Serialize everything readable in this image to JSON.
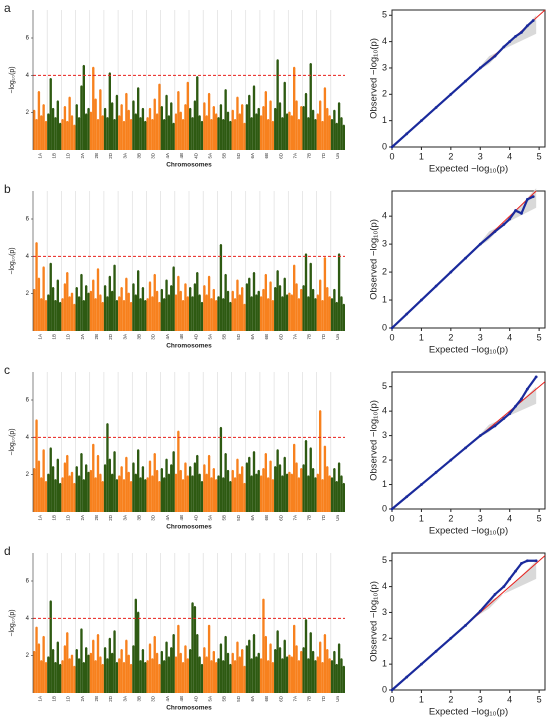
{
  "chart_data": [
    {
      "type": "manhattan",
      "panel": "a",
      "ylabel": "−log₁₀(p)",
      "xlabel": "Chromosomes",
      "categories": [
        "1A",
        "1B",
        "1D",
        "2A",
        "2B",
        "2D",
        "3A",
        "3B",
        "3D",
        "4A",
        "4B",
        "4D",
        "5A",
        "5B",
        "5D",
        "6A",
        "6B",
        "6D",
        "7A",
        "7B",
        "7D",
        "Un"
      ],
      "colors": [
        "#f7811e",
        "#2e5a12"
      ],
      "threshold": 4,
      "threshold_color": "#e8211d",
      "ylim": [
        0,
        7.5
      ],
      "yticks": [
        2,
        4,
        6
      ],
      "values": [
        [
          2.1,
          1.6,
          3.1,
          1.8,
          2.4,
          1.5
        ],
        [
          1.9,
          3.8,
          2.2,
          1.7,
          2.6,
          1.4
        ],
        [
          1.6,
          2.3,
          1.5,
          2.8,
          1.8,
          1.3
        ],
        [
          2.4,
          1.7,
          3.4,
          4.5,
          1.9,
          2.2
        ],
        [
          2.0,
          4.4,
          2.7,
          1.6,
          3.2,
          1.8
        ],
        [
          2.2,
          1.7,
          4.1,
          2.5,
          1.6,
          2.9
        ],
        [
          1.8,
          2.4,
          1.5,
          3.0,
          2.1,
          1.6
        ],
        [
          2.6,
          1.9,
          3.3,
          1.7,
          2.2,
          1.5
        ],
        [
          1.7,
          2.2,
          1.6,
          2.7,
          1.9,
          3.5
        ],
        [
          2.3,
          1.6,
          2.9,
          1.8,
          2.5,
          1.4
        ],
        [
          1.9,
          3.1,
          2.0,
          1.6,
          2.4,
          3.6
        ],
        [
          2.2,
          1.7,
          2.6,
          3.9,
          1.8,
          1.5
        ],
        [
          2.5,
          1.8,
          3.0,
          1.6,
          2.3,
          1.9
        ],
        [
          1.7,
          2.4,
          1.6,
          3.2,
          2.0,
          1.5
        ],
        [
          2.1,
          1.6,
          2.8,
          1.9,
          2.4,
          1.4
        ],
        [
          2.4,
          2.9,
          1.7,
          3.4,
          1.9,
          2.2
        ],
        [
          1.8,
          2.3,
          3.1,
          1.6,
          2.6,
          1.5
        ],
        [
          2.2,
          4.8,
          2.5,
          1.7,
          3.6,
          1.9
        ],
        [
          2.0,
          1.8,
          4.4,
          2.6,
          1.6,
          2.3
        ],
        [
          2.3,
          3.0,
          1.7,
          4.6,
          2.1,
          1.6
        ],
        [
          1.9,
          2.6,
          1.5,
          3.3,
          2.2,
          1.8
        ],
        [
          1.6,
          2.1,
          1.4,
          2.5,
          1.7,
          1.3
        ]
      ]
    },
    {
      "type": "qq",
      "xlabel": "Expected −log₁₀(p)",
      "ylabel": "Observed −log₁₀(p)",
      "x": [
        0,
        0.5,
        1,
        1.5,
        2,
        2.5,
        3,
        3.5,
        3.8,
        4,
        4.2,
        4.4,
        4.6,
        4.8
      ],
      "y": [
        0,
        0.5,
        1,
        1.5,
        2,
        2.5,
        3,
        3.45,
        3.8,
        4.0,
        4.2,
        4.35,
        4.6,
        4.8
      ],
      "point_color": "#1a2a9c",
      "line_color": "#e8211d",
      "xlim": [
        0,
        5.2
      ],
      "xticks": [
        0,
        1,
        2,
        3,
        4,
        5
      ],
      "ylim": [
        0,
        5.2
      ],
      "yticks": [
        0,
        1,
        2,
        3,
        4,
        5
      ]
    },
    {
      "type": "manhattan",
      "panel": "b",
      "ylabel": "−log₁₀(p)",
      "xlabel": "Chromosomes",
      "categories": [
        "1A",
        "1B",
        "1D",
        "2A",
        "2B",
        "2D",
        "3A",
        "3B",
        "3D",
        "4A",
        "4B",
        "4D",
        "5A",
        "5B",
        "5D",
        "6A",
        "6B",
        "6D",
        "7A",
        "7B",
        "7D",
        "Un"
      ],
      "colors": [
        "#f7811e",
        "#2e5a12"
      ],
      "threshold": 4,
      "threshold_color": "#e8211d",
      "ylim": [
        0,
        7.5
      ],
      "yticks": [
        2,
        4,
        6
      ],
      "values": [
        [
          2.2,
          4.7,
          2.8,
          1.7,
          3.4,
          1.6
        ],
        [
          1.9,
          3.6,
          2.3,
          1.6,
          2.7,
          1.5
        ],
        [
          1.7,
          2.5,
          3.1,
          1.8,
          2.0,
          1.4
        ],
        [
          2.3,
          1.8,
          3.0,
          1.6,
          2.4,
          2.0
        ],
        [
          2.1,
          2.7,
          1.7,
          3.3,
          1.9,
          1.5
        ],
        [
          2.4,
          1.8,
          2.9,
          2.1,
          3.5,
          1.6
        ],
        [
          1.8,
          2.3,
          1.6,
          2.8,
          2.0,
          1.5
        ],
        [
          2.5,
          1.9,
          3.2,
          1.7,
          2.3,
          1.6
        ],
        [
          1.7,
          2.6,
          1.8,
          3.0,
          2.1,
          1.5
        ],
        [
          2.2,
          1.7,
          2.7,
          1.9,
          2.4,
          3.4
        ],
        [
          1.9,
          2.9,
          2.1,
          1.6,
          2.5,
          1.8
        ],
        [
          2.3,
          1.8,
          2.5,
          3.1,
          1.9,
          1.5
        ],
        [
          2.4,
          1.9,
          2.9,
          1.7,
          2.2,
          1.6
        ],
        [
          1.8,
          4.6,
          1.7,
          3.0,
          2.1,
          1.5
        ],
        [
          2.1,
          1.7,
          2.7,
          1.9,
          2.3,
          1.4
        ],
        [
          2.5,
          2.8,
          1.8,
          3.1,
          1.9,
          2.1
        ],
        [
          1.8,
          2.2,
          3.0,
          1.7,
          2.6,
          1.6
        ],
        [
          2.3,
          3.2,
          2.4,
          1.8,
          2.8,
          1.9
        ],
        [
          2.0,
          1.9,
          3.5,
          2.5,
          1.7,
          2.2
        ],
        [
          2.4,
          4.1,
          1.8,
          3.6,
          2.2,
          1.7
        ],
        [
          1.9,
          2.7,
          1.6,
          3.9,
          2.3,
          1.8
        ],
        [
          1.7,
          2.2,
          1.5,
          4.1,
          1.8,
          1.4
        ]
      ]
    },
    {
      "type": "qq",
      "xlabel": "Expected −log₁₀(p)",
      "ylabel": "Observed −log₁₀(p)",
      "x": [
        0,
        0.5,
        1,
        1.5,
        2,
        2.5,
        3,
        3.5,
        3.8,
        4,
        4.2,
        4.4,
        4.6,
        4.8
      ],
      "y": [
        0,
        0.5,
        1,
        1.5,
        2,
        2.5,
        3,
        3.45,
        3.7,
        3.9,
        4.2,
        4.1,
        4.6,
        4.7
      ],
      "point_color": "#1a2a9c",
      "line_color": "#e8211d",
      "xlim": [
        0,
        5.2
      ],
      "xticks": [
        0,
        1,
        2,
        3,
        4,
        5
      ],
      "ylim": [
        0,
        4.9
      ],
      "yticks": [
        0,
        1,
        2,
        3,
        4
      ]
    },
    {
      "type": "manhattan",
      "panel": "c",
      "ylabel": "−log₁₀(p)",
      "xlabel": "Chromosomes",
      "categories": [
        "1A",
        "1B",
        "1D",
        "2A",
        "2B",
        "2D",
        "3A",
        "3B",
        "3D",
        "4A",
        "4B",
        "4D",
        "5A",
        "5B",
        "5D",
        "6A",
        "6B",
        "6D",
        "7A",
        "7B",
        "7D",
        "Un"
      ],
      "colors": [
        "#f7811e",
        "#2e5a12"
      ],
      "threshold": 4,
      "threshold_color": "#e8211d",
      "ylim": [
        0,
        7.5
      ],
      "yticks": [
        2,
        4,
        6
      ],
      "values": [
        [
          2.3,
          4.9,
          2.7,
          1.8,
          3.3,
          1.6
        ],
        [
          2.0,
          3.4,
          2.4,
          1.7,
          2.8,
          1.5
        ],
        [
          1.8,
          2.6,
          3.0,
          1.9,
          2.1,
          1.5
        ],
        [
          2.4,
          1.9,
          3.1,
          1.7,
          2.5,
          2.1
        ],
        [
          2.2,
          3.6,
          1.8,
          3.0,
          2.0,
          1.6
        ],
        [
          2.5,
          4.7,
          2.8,
          2.0,
          3.2,
          1.7
        ],
        [
          1.9,
          2.4,
          1.7,
          2.9,
          2.1,
          1.6
        ],
        [
          2.6,
          2.0,
          3.3,
          1.8,
          2.4,
          1.7
        ],
        [
          1.8,
          2.7,
          1.9,
          3.1,
          2.2,
          1.6
        ],
        [
          2.3,
          1.8,
          2.8,
          2.0,
          2.5,
          3.2
        ],
        [
          2.0,
          4.3,
          2.2,
          1.7,
          2.6,
          1.9
        ],
        [
          2.4,
          1.9,
          2.6,
          3.0,
          2.0,
          1.6
        ],
        [
          2.5,
          2.0,
          3.0,
          1.8,
          2.3,
          1.7
        ],
        [
          1.9,
          4.5,
          1.8,
          3.1,
          2.2,
          1.6
        ],
        [
          2.2,
          1.8,
          2.8,
          2.0,
          2.4,
          1.5
        ],
        [
          2.6,
          2.9,
          1.9,
          3.2,
          2.0,
          2.2
        ],
        [
          1.9,
          2.3,
          3.1,
          1.8,
          2.7,
          1.7
        ],
        [
          2.4,
          3.3,
          2.5,
          1.9,
          2.9,
          2.0
        ],
        [
          2.1,
          2.0,
          3.6,
          2.6,
          1.8,
          2.3
        ],
        [
          2.5,
          3.8,
          1.9,
          3.4,
          2.3,
          1.8
        ],
        [
          2.0,
          5.4,
          1.7,
          3.5,
          2.4,
          1.9
        ],
        [
          1.8,
          2.3,
          1.6,
          2.6,
          1.9,
          1.5
        ]
      ]
    },
    {
      "type": "qq",
      "xlabel": "Expected −log₁₀(p)",
      "ylabel": "Observed −log₁₀(p)",
      "x": [
        0,
        0.5,
        1,
        1.5,
        2,
        2.5,
        3,
        3.5,
        3.8,
        4,
        4.2,
        4.4,
        4.6,
        4.9
      ],
      "y": [
        0,
        0.5,
        1,
        1.5,
        2,
        2.5,
        3,
        3.4,
        3.7,
        3.9,
        4.2,
        4.5,
        4.9,
        5.4
      ],
      "point_color": "#1a2a9c",
      "line_color": "#e8211d",
      "xlim": [
        0,
        5.2
      ],
      "xticks": [
        0,
        1,
        2,
        3,
        4,
        5
      ],
      "ylim": [
        0,
        5.6
      ],
      "yticks": [
        0,
        1,
        2,
        3,
        4,
        5
      ]
    },
    {
      "type": "manhattan",
      "panel": "d",
      "ylabel": "−log₁₀(p)",
      "xlabel": "Chromosomes",
      "categories": [
        "1A",
        "1B",
        "1D",
        "2A",
        "2B",
        "2D",
        "3A",
        "3B",
        "3D",
        "4A",
        "4B",
        "4D",
        "5A",
        "5B",
        "5D",
        "6A",
        "6B",
        "6D",
        "7A",
        "7B",
        "7D",
        "Un"
      ],
      "colors": [
        "#f7811e",
        "#2e5a12"
      ],
      "threshold": 4,
      "threshold_color": "#e8211d",
      "ylim": [
        0,
        7.5
      ],
      "yticks": [
        2,
        4,
        6
      ],
      "values": [
        [
          2.2,
          3.5,
          2.6,
          1.7,
          3.0,
          1.6
        ],
        [
          1.9,
          4.9,
          2.3,
          1.6,
          2.7,
          1.5
        ],
        [
          1.7,
          2.5,
          3.2,
          1.8,
          2.0,
          1.4
        ],
        [
          2.3,
          1.8,
          3.4,
          1.6,
          2.4,
          2.0
        ],
        [
          2.1,
          2.8,
          1.7,
          3.1,
          1.9,
          1.5
        ],
        [
          2.4,
          1.8,
          2.9,
          2.1,
          3.3,
          1.6
        ],
        [
          1.8,
          2.3,
          1.6,
          2.8,
          2.0,
          1.5
        ],
        [
          2.5,
          5.0,
          4.3,
          1.7,
          2.3,
          1.6
        ],
        [
          1.7,
          2.6,
          1.8,
          3.0,
          2.1,
          1.5
        ],
        [
          2.2,
          1.7,
          2.7,
          1.9,
          2.4,
          3.1
        ],
        [
          1.9,
          3.6,
          2.1,
          1.6,
          2.5,
          1.8
        ],
        [
          2.3,
          4.8,
          4.6,
          3.1,
          1.9,
          1.5
        ],
        [
          2.4,
          1.9,
          3.6,
          1.7,
          2.2,
          1.6
        ],
        [
          1.8,
          2.6,
          1.7,
          3.0,
          2.1,
          1.5
        ],
        [
          2.1,
          1.7,
          2.7,
          1.9,
          2.3,
          1.4
        ],
        [
          2.5,
          2.8,
          1.8,
          3.1,
          1.9,
          2.1
        ],
        [
          1.8,
          5.0,
          3.0,
          1.7,
          2.6,
          1.6
        ],
        [
          2.3,
          3.3,
          2.4,
          1.8,
          2.8,
          1.9
        ],
        [
          2.0,
          1.9,
          3.6,
          2.5,
          1.7,
          2.2
        ],
        [
          2.4,
          3.9,
          1.8,
          3.2,
          2.2,
          1.7
        ],
        [
          1.9,
          2.7,
          1.6,
          3.1,
          2.3,
          1.8
        ],
        [
          1.7,
          2.2,
          1.5,
          2.6,
          1.8,
          1.4
        ]
      ]
    },
    {
      "type": "qq",
      "xlabel": "Expected −log₁₀(p)",
      "ylabel": "Observed −log₁₀(p)",
      "x": [
        0,
        0.5,
        1,
        1.5,
        2,
        2.5,
        3,
        3.5,
        3.8,
        4,
        4.2,
        4.4,
        4.6,
        4.9
      ],
      "y": [
        0,
        0.5,
        1,
        1.5,
        2,
        2.5,
        3.05,
        3.7,
        4.0,
        4.3,
        4.6,
        4.9,
        5.0,
        5.0
      ],
      "point_color": "#1a2a9c",
      "line_color": "#e8211d",
      "xlim": [
        0,
        5.2
      ],
      "xticks": [
        0,
        1,
        2,
        3,
        4,
        5
      ],
      "ylim": [
        0,
        5.3
      ],
      "yticks": [
        0,
        1,
        2,
        3,
        4,
        5
      ]
    }
  ]
}
